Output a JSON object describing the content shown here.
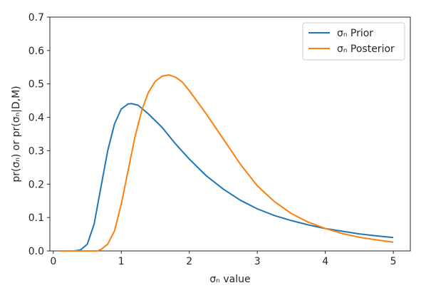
{
  "chart_data": {
    "type": "line",
    "xlabel": "σₙ value",
    "ylabel": "pr(σₙ) or pr(σₙ|D,M)",
    "xlim": [
      -0.05,
      5.25
    ],
    "ylim": [
      0,
      0.7
    ],
    "xticks": [
      "0",
      "1",
      "2",
      "3",
      "4",
      "5"
    ],
    "yticks": [
      "0.0",
      "0.1",
      "0.2",
      "0.3",
      "0.4",
      "0.5",
      "0.6",
      "0.7"
    ],
    "grid": false,
    "legend_position": "top-right",
    "series": [
      {
        "name": "σₙ Prior",
        "color": "#1f77b4",
        "x": [
          0.1,
          0.2,
          0.3,
          0.4,
          0.5,
          0.6,
          0.7,
          0.8,
          0.9,
          1.0,
          1.1,
          1.15,
          1.25,
          1.4,
          1.6,
          1.8,
          2.0,
          2.25,
          2.5,
          2.75,
          3.0,
          3.25,
          3.5,
          3.75,
          4.0,
          4.25,
          4.5,
          4.75,
          5.0
        ],
        "y": [
          0.0,
          0.0,
          0.0,
          0.003,
          0.02,
          0.08,
          0.19,
          0.3,
          0.38,
          0.425,
          0.44,
          0.441,
          0.436,
          0.41,
          0.37,
          0.32,
          0.275,
          0.225,
          0.185,
          0.152,
          0.126,
          0.106,
          0.091,
          0.078,
          0.067,
          0.059,
          0.051,
          0.045,
          0.04
        ]
      },
      {
        "name": "σₙ Posterior",
        "color": "#ff7f0e",
        "x": [
          0.1,
          0.3,
          0.5,
          0.65,
          0.7,
          0.8,
          0.9,
          1.0,
          1.1,
          1.2,
          1.3,
          1.4,
          1.5,
          1.6,
          1.7,
          1.8,
          1.9,
          2.0,
          2.25,
          2.5,
          2.75,
          3.0,
          3.25,
          3.5,
          3.75,
          4.0,
          4.25,
          4.5,
          4.75,
          5.0
        ],
        "y": [
          0.0,
          0.0,
          0.0,
          0.0,
          0.004,
          0.02,
          0.06,
          0.14,
          0.24,
          0.34,
          0.42,
          0.475,
          0.508,
          0.523,
          0.527,
          0.52,
          0.505,
          0.48,
          0.41,
          0.335,
          0.26,
          0.195,
          0.148,
          0.112,
          0.086,
          0.067,
          0.052,
          0.041,
          0.033,
          0.026
        ]
      }
    ]
  }
}
